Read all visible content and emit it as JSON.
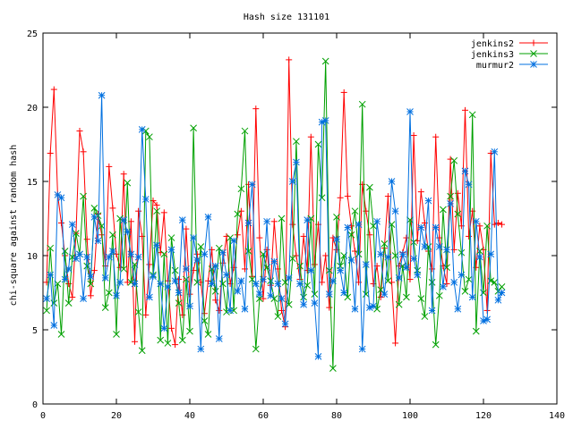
{
  "chart_data": {
    "type": "line",
    "title": "Hash size 131101",
    "xlabel": "",
    "ylabel": "chi-square against random hash",
    "xlim": [
      0,
      140
    ],
    "ylim": [
      0,
      25
    ],
    "xticks": [
      0,
      20,
      40,
      60,
      80,
      100,
      120,
      140
    ],
    "yticks": [
      0,
      5,
      10,
      15,
      20,
      25
    ],
    "legend_position": "top-right",
    "series": [
      {
        "name": "jenkins2",
        "color": "#ff0000",
        "marker": "plus",
        "values": [
          8.2,
          16.9,
          21.2,
          14.1,
          12.2,
          10.0,
          8.1,
          7.2,
          11.5,
          18.4,
          17.0,
          11.1,
          7.3,
          9.0,
          12.8,
          11.4,
          9.3,
          16.0,
          13.2,
          10.1,
          9.2,
          15.5,
          8.2,
          12.3,
          4.2,
          13.0,
          11.3,
          6.0,
          9.4,
          13.7,
          13.4,
          10.2,
          12.9,
          8.3,
          5.1,
          4.0,
          8.4,
          6.0,
          11.8,
          7.4,
          9.0,
          10.1,
          8.2,
          6.1,
          8.3,
          10.4,
          7.0,
          6.3,
          9.5,
          11.3,
          8.1,
          9.2,
          11.4,
          13.0,
          9.1,
          14.8,
          8.6,
          19.9,
          11.2,
          7.1,
          10.4,
          8.0,
          12.3,
          9.1,
          6.3,
          5.2,
          23.2,
          12.1,
          10.0,
          8.4,
          11.3,
          9.0,
          18.0,
          9.4,
          12.1,
          8.2,
          10.0,
          6.5,
          11.2,
          10.4,
          13.9,
          21.0,
          14.0,
          12.0,
          10.3,
          8.2,
          14.8,
          13.0,
          11.4,
          8.1,
          9.3,
          7.2,
          10.5,
          14.0,
          8.2,
          4.1,
          9.3,
          10.2,
          11.2,
          8.4,
          18.1,
          11.0,
          14.3,
          12.2,
          10.3,
          9.1,
          18.0,
          11.2,
          9.3,
          8.1,
          16.5,
          10.4,
          14.2,
          12.0,
          19.8,
          11.3,
          13.0,
          9.2,
          12.0,
          10.4,
          6.3,
          16.9,
          12.1,
          12.2,
          12.1
        ]
      },
      {
        "name": "jenkins3",
        "color": "#00a000",
        "marker": "cross",
        "values": [
          6.3,
          10.5,
          6.8,
          8.1,
          4.7,
          10.3,
          6.8,
          9.9,
          11.5,
          10.1,
          14.0,
          9.3,
          8.1,
          13.2,
          12.7,
          12.0,
          6.5,
          7.5,
          11.4,
          4.7,
          12.5,
          9.1,
          14.9,
          8.2,
          9.4,
          6.2,
          3.6,
          18.4,
          18.0,
          8.7,
          13.0,
          4.3,
          10.1,
          4.1,
          11.2,
          9.0,
          6.8,
          4.3,
          8.4,
          4.9,
          18.6,
          8.2,
          10.6,
          5.6,
          4.7,
          9.1,
          7.6,
          10.5,
          8.1,
          6.2,
          11.2,
          6.3,
          12.8,
          14.5,
          18.4,
          10.3,
          8.4,
          3.7,
          7.1,
          10.1,
          9.2,
          8.3,
          7.1,
          5.9,
          12.5,
          8.2,
          6.7,
          9.8,
          17.7,
          9.3,
          7.2,
          8.0,
          12.5,
          7.4,
          17.5,
          13.9,
          23.1,
          9.0,
          2.4,
          12.6,
          9.3,
          10.0,
          7.2,
          11.4,
          13.0,
          10.1,
          20.2,
          7.4,
          14.6,
          12.0,
          6.4,
          7.7,
          10.8,
          8.3,
          12.1,
          10.0,
          6.7,
          9.3,
          7.2,
          12.4,
          10.9,
          9.0,
          7.1,
          5.9,
          10.6,
          8.2,
          4.0,
          7.3,
          13.1,
          9.2,
          14.0,
          16.4,
          12.8,
          10.2,
          7.6,
          8.4,
          19.5,
          4.9,
          10.3,
          7.5,
          12.0,
          8.3,
          8.2,
          7.6,
          7.9
        ]
      },
      {
        "name": "murmur2",
        "color": "#0070e0",
        "marker": "star",
        "values": [
          7.1,
          8.7,
          5.3,
          14.1,
          13.9,
          8.4,
          9.1,
          12.1,
          9.8,
          10.1,
          7.1,
          9.9,
          8.6,
          12.6,
          11.0,
          20.8,
          8.5,
          9.9,
          10.3,
          7.3,
          8.2,
          12.4,
          11.6,
          10.1,
          8.1,
          9.9,
          18.5,
          13.8,
          7.2,
          8.6,
          10.7,
          8.1,
          5.1,
          7.9,
          10.4,
          8.3,
          7.5,
          12.4,
          9.1,
          6.6,
          11.2,
          9.7,
          3.7,
          10.1,
          12.6,
          8.1,
          9.3,
          4.4,
          10.2,
          8.7,
          6.3,
          11.0,
          7.6,
          8.3,
          6.4,
          12.2,
          14.8,
          8.1,
          7.4,
          8.4,
          12.3,
          7.3,
          9.6,
          8.1,
          7.1,
          5.4,
          8.5,
          15.0,
          16.3,
          8.1,
          6.7,
          12.4,
          9.0,
          6.8,
          3.2,
          19.0,
          19.1,
          7.4,
          8.3,
          11.1,
          9.0,
          7.5,
          11.9,
          9.7,
          6.4,
          12.1,
          3.7,
          9.4,
          6.5,
          6.6,
          12.3,
          10.1,
          7.4,
          9.9,
          15.0,
          13.0,
          8.5,
          10.1,
          9.2,
          19.7,
          9.8,
          8.7,
          11.9,
          10.6,
          13.7,
          6.3,
          11.9,
          10.6,
          7.9,
          10.4,
          13.5,
          8.2,
          6.4,
          8.7,
          15.7,
          14.8,
          7.2,
          12.3,
          9.9,
          5.6,
          5.7,
          10.1,
          17.0,
          7.0,
          7.5
        ]
      }
    ]
  }
}
